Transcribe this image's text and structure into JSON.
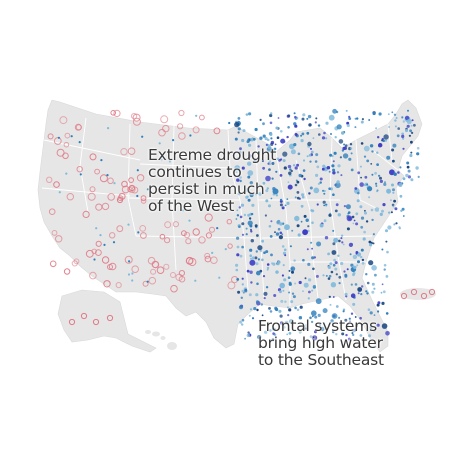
{
  "map": {
    "annotations": {
      "west": "Extreme drought\ncontinues to\npersist in much\nof the West",
      "southeast": "Frontal systems\nbring high water\nto the Southeast"
    },
    "colors": {
      "land": "#e6e6e6",
      "state_border": "#ffffff",
      "drought_ring": "#e07a86",
      "high_water_light": "#7fb9dc",
      "high_water_mid": "#2f7fbd",
      "high_water_dark": "#16437e",
      "flood": "#3f3fc6",
      "annotation_text": "#3a3a3a"
    },
    "legend_meaning": {
      "red_rings": "low streamflow / drought",
      "blue_dots": "high water"
    }
  }
}
